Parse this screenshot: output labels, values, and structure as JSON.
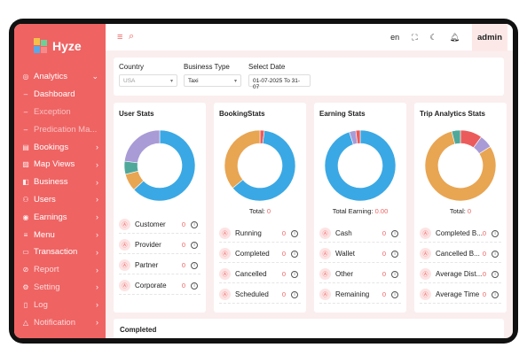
{
  "brand": {
    "name": "Hyze"
  },
  "sidebar": {
    "items": [
      {
        "icon": "analytics-icon",
        "glyph": "◎",
        "label": "Analytics",
        "chevron": "⌄"
      },
      {
        "icon": "dash-icon",
        "glyph": "–",
        "label": "Dashboard"
      },
      {
        "icon": "dash-icon",
        "glyph": "–",
        "label": "Exception"
      },
      {
        "icon": "dash-icon",
        "glyph": "–",
        "label": "Predication Ma..."
      },
      {
        "icon": "bookings-icon",
        "glyph": "▤",
        "label": "Bookings",
        "chevron": "›"
      },
      {
        "icon": "map-icon",
        "glyph": "▨",
        "label": "Map Views",
        "chevron": "›"
      },
      {
        "icon": "business-icon",
        "glyph": "◧",
        "label": "Business",
        "chevron": "›"
      },
      {
        "icon": "users-icon",
        "glyph": "⚇",
        "label": "Users",
        "chevron": "›"
      },
      {
        "icon": "earnings-icon",
        "glyph": "◉",
        "label": "Earnings",
        "chevron": "›"
      },
      {
        "icon": "menu-icon",
        "glyph": "≡",
        "label": "Menu",
        "chevron": "›"
      },
      {
        "icon": "transaction-icon",
        "glyph": "▭",
        "label": "Transaction",
        "chevron": "›"
      },
      {
        "icon": "report-icon",
        "glyph": "⊘",
        "label": "Report",
        "chevron": "›"
      },
      {
        "icon": "setting-icon",
        "glyph": "⚙",
        "label": "Setting",
        "chevron": "›"
      },
      {
        "icon": "log-icon",
        "glyph": "▯",
        "label": "Log",
        "chevron": "›"
      },
      {
        "icon": "notification-icon",
        "glyph": "△",
        "label": "Notification",
        "chevron": "›"
      }
    ]
  },
  "topbar": {
    "language": "en",
    "user": "admin"
  },
  "filters": {
    "country": {
      "label": "Country",
      "value": "USA"
    },
    "business_type": {
      "label": "Business Type",
      "value": "Taxi"
    },
    "date": {
      "label": "Select Date",
      "value": "01-07-2025 To 31-07"
    }
  },
  "colors": {
    "accent": "#ef6363",
    "blue": "#3aa8e4",
    "orange": "#e8a552",
    "purple": "#a99bd6",
    "teal": "#4fa89a",
    "red": "#ec5b5b"
  },
  "cards": [
    {
      "title": "User Stats",
      "total_label": "",
      "total_value": "",
      "segments": [
        {
          "color": "#3aa8e4",
          "value": 63
        },
        {
          "color": "#e8a552",
          "value": 8
        },
        {
          "color": "#4fa89a",
          "value": 6
        },
        {
          "color": "#a99bd6",
          "value": 23
        }
      ],
      "rows": [
        {
          "label": "Customer",
          "value": "0"
        },
        {
          "label": "Provider",
          "value": "0"
        },
        {
          "label": "Partner",
          "value": "0"
        },
        {
          "label": "Corporate",
          "value": "0"
        }
      ]
    },
    {
      "title": "BookingStats",
      "total_label": "Total:",
      "total_value": "0",
      "segments": [
        {
          "color": "#ec5b5b",
          "value": 2
        },
        {
          "color": "#3aa8e4",
          "value": 62
        },
        {
          "color": "#e8a552",
          "value": 36
        }
      ],
      "rows": [
        {
          "label": "Running",
          "value": "0"
        },
        {
          "label": "Completed",
          "value": "0"
        },
        {
          "label": "Cancelled",
          "value": "0"
        },
        {
          "label": "Scheduled",
          "value": "0"
        }
      ]
    },
    {
      "title": "Earning Stats",
      "total_label": "Total Earning:",
      "total_value": "0.00",
      "segments": [
        {
          "color": "#3aa8e4",
          "value": 95
        },
        {
          "color": "#a99bd6",
          "value": 3
        },
        {
          "color": "#ec5b5b",
          "value": 2
        }
      ],
      "rows": [
        {
          "label": "Cash",
          "value": "0"
        },
        {
          "label": "Wallet",
          "value": "0"
        },
        {
          "label": "Other",
          "value": "0"
        },
        {
          "label": "Remaining",
          "value": "0"
        }
      ]
    },
    {
      "title": "Trip Analytics Stats",
      "total_label": "Total:",
      "total_value": "0",
      "segments": [
        {
          "color": "#ec5b5b",
          "value": 10
        },
        {
          "color": "#a99bd6",
          "value": 6
        },
        {
          "color": "#e8a552",
          "value": 80
        },
        {
          "color": "#4fa89a",
          "value": 4
        }
      ],
      "rows": [
        {
          "label": "Completed B...",
          "value": "0"
        },
        {
          "label": "Cancelled B...",
          "value": "0"
        },
        {
          "label": "Average Dist...",
          "value": "0"
        },
        {
          "label": "Average Time",
          "value": "0"
        }
      ]
    }
  ],
  "bottom": {
    "title": "Completed"
  }
}
